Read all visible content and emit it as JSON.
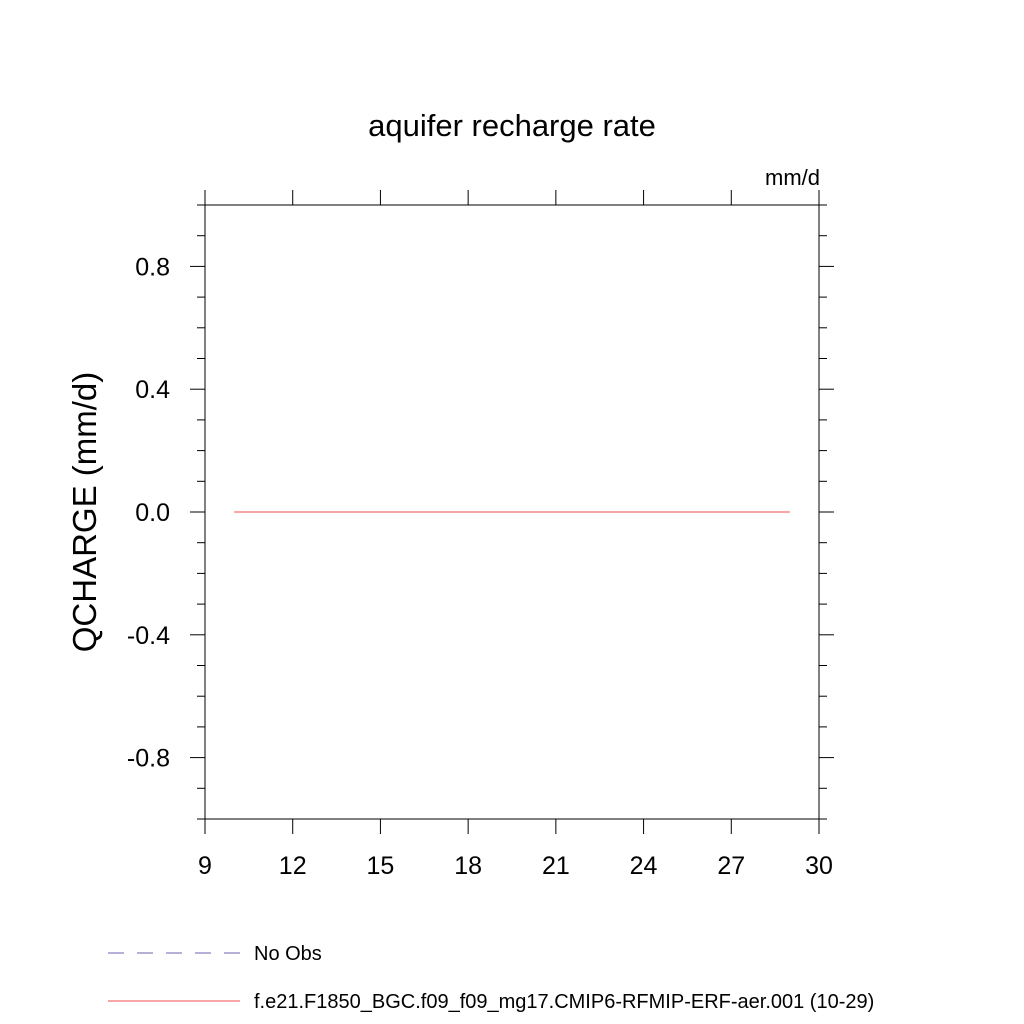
{
  "chart_data": {
    "type": "line",
    "title": "aquifer recharge rate",
    "units": "mm/d",
    "ylabel": "QCHARGE  (mm/d)",
    "xlabel": "",
    "xlim": [
      9,
      30
    ],
    "ylim": [
      -1.0,
      1.0
    ],
    "x_ticks": [
      9,
      12,
      15,
      18,
      21,
      24,
      27,
      30
    ],
    "x_tick_labels": [
      "9",
      "12",
      "15",
      "18",
      "21",
      "24",
      "27",
      "30"
    ],
    "y_ticks": [
      -0.8,
      -0.4,
      0.0,
      0.4,
      0.8
    ],
    "y_tick_labels": [
      "-0.8",
      "-0.4",
      "0.0",
      "0.4",
      "0.8"
    ],
    "grid": false,
    "legend_position": "bottom",
    "series": [
      {
        "name": "No Obs",
        "color": "#8a7fbf",
        "dash": "dashed",
        "x": [],
        "y": []
      },
      {
        "name": "f.e21.F1850_BGC.f09_f09_mg17.CMIP6-RFMIP-ERF-aer.001 (10-29)",
        "color": "#f07070",
        "dash": "solid",
        "x": [
          10,
          11,
          12,
          13,
          14,
          15,
          16,
          17,
          18,
          19,
          20,
          21,
          22,
          23,
          24,
          25,
          26,
          27,
          28,
          29
        ],
        "y": [
          0,
          0,
          0,
          0,
          0,
          0,
          0,
          0,
          0,
          0,
          0,
          0,
          0,
          0,
          0,
          0,
          0,
          0,
          0,
          0
        ]
      }
    ]
  }
}
